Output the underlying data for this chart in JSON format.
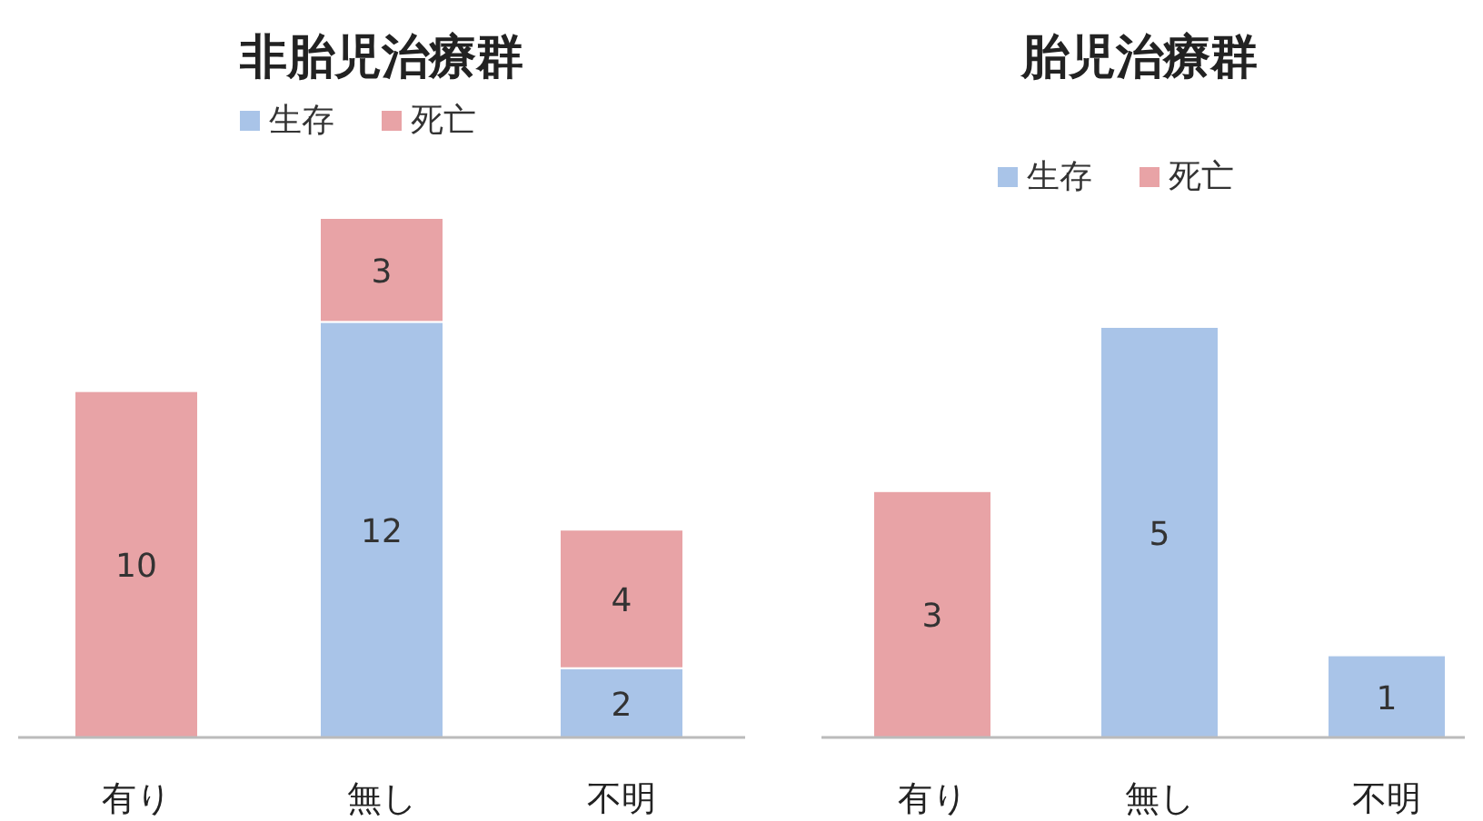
{
  "chart_data": [
    {
      "type": "bar",
      "title": "非胎児治療群",
      "categories": [
        "有り",
        "無し",
        "不明"
      ],
      "stacked": true,
      "data_labels": true,
      "legend": "top",
      "series": [
        {
          "name": "生存",
          "color": "#a9c4e8",
          "values": [
            null,
            12,
            2
          ]
        },
        {
          "name": "死亡",
          "color": "#e8a3a6",
          "values": [
            10,
            3,
            4
          ]
        }
      ]
    },
    {
      "type": "bar",
      "title": "胎児治療群",
      "categories": [
        "有り",
        "無し",
        "不明"
      ],
      "stacked": true,
      "data_labels": true,
      "legend": "top",
      "series": [
        {
          "name": "生存",
          "color": "#a9c4e8",
          "values": [
            null,
            5,
            1
          ]
        },
        {
          "name": "死亡",
          "color": "#e8a3a6",
          "values": [
            3,
            null,
            null
          ]
        }
      ]
    }
  ]
}
